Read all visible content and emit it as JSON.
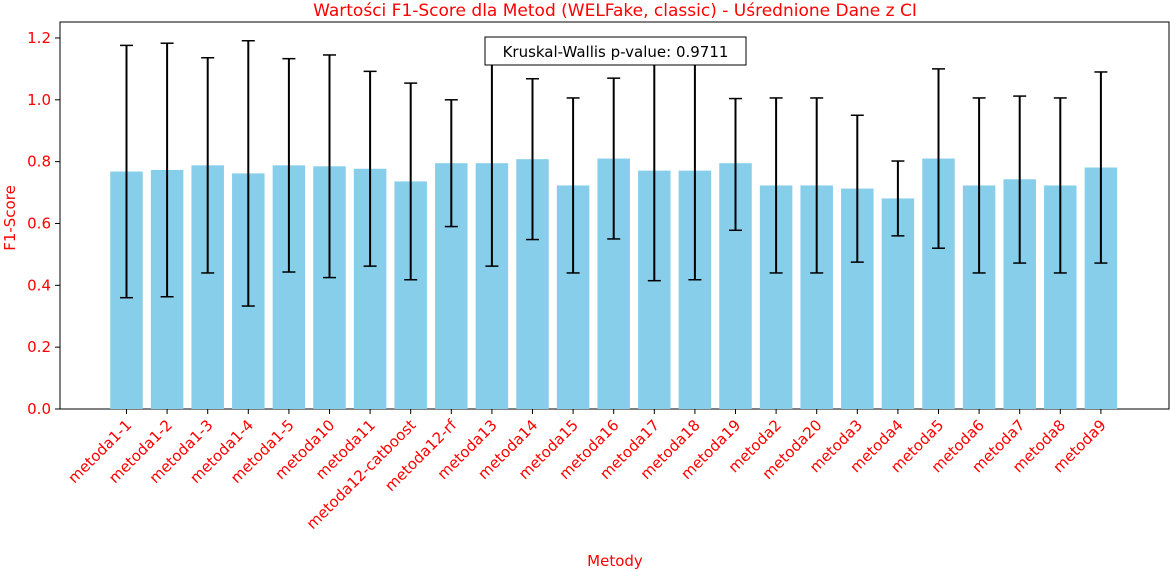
{
  "chart_data": {
    "type": "bar",
    "title": "Wartości F1-Score dla Metod (WELFake, classic) - Uśrednione Dane z CI",
    "xlabel": "Metody",
    "ylabel": "F1-Score",
    "ylim": [
      0,
      1.25
    ],
    "yticks": [
      "0.0",
      "0.2",
      "0.4",
      "0.6",
      "0.8",
      "1.0",
      "1.2"
    ],
    "grid": false,
    "annotation": "Kruskal-Wallis p-value: 0.9711",
    "bar_color": "#87ceeb",
    "text_color": "#ff0000",
    "categories": [
      "metoda1-1",
      "metoda1-2",
      "metoda1-3",
      "metoda1-4",
      "metoda1-5",
      "metoda10",
      "metoda11",
      "metoda12-catboost",
      "metoda12-rf",
      "metoda13",
      "metoda14",
      "metoda15",
      "metoda16",
      "metoda17",
      "metoda18",
      "metoda19",
      "metoda2",
      "metoda20",
      "metoda3",
      "metoda4",
      "metoda5",
      "metoda6",
      "metoda7",
      "metoda8",
      "metoda9"
    ],
    "values": [
      0.768,
      0.773,
      0.788,
      0.762,
      0.788,
      0.785,
      0.777,
      0.736,
      0.795,
      0.795,
      0.808,
      0.723,
      0.81,
      0.771,
      0.771,
      0.795,
      0.723,
      0.723,
      0.713,
      0.681,
      0.81,
      0.723,
      0.743,
      0.723,
      0.781
    ],
    "ci_lower": [
      0.36,
      0.363,
      0.44,
      0.333,
      0.443,
      0.425,
      0.462,
      0.418,
      0.59,
      0.462,
      0.548,
      0.44,
      0.55,
      0.415,
      0.418,
      0.578,
      0.44,
      0.44,
      0.475,
      0.56,
      0.52,
      0.44,
      0.472,
      0.44,
      0.472
    ],
    "ci_upper": [
      1.176,
      1.183,
      1.136,
      1.191,
      1.133,
      1.145,
      1.092,
      1.054,
      1.0,
      1.128,
      1.068,
      1.006,
      1.07,
      1.127,
      1.124,
      1.004,
      1.006,
      1.006,
      0.95,
      0.802,
      1.1,
      1.006,
      1.012,
      1.006,
      1.09
    ]
  }
}
